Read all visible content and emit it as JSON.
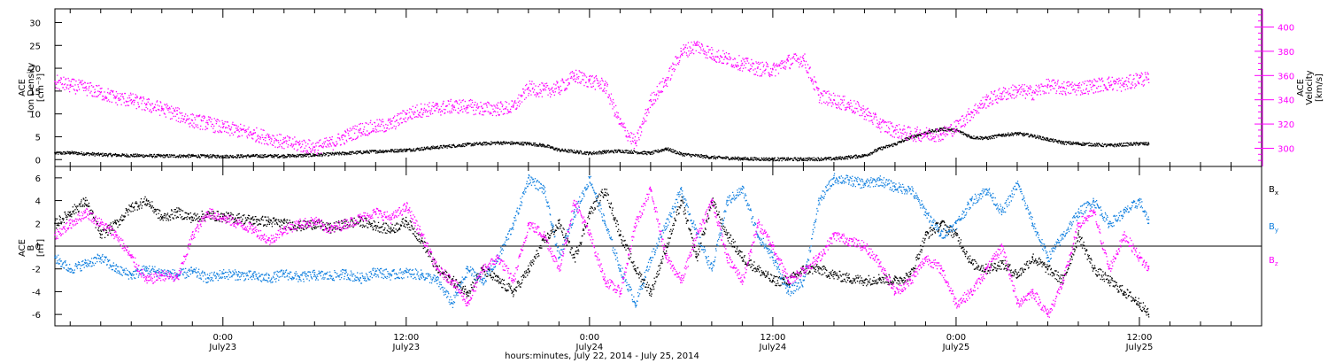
{
  "figure": {
    "xlabel": "hours:minutes, July 22, 2014 - July 25, 2014",
    "x_ticks": [
      {
        "time": "0:00",
        "date": "July23",
        "hour": 24
      },
      {
        "time": "12:00",
        "date": "July23",
        "hour": 36
      },
      {
        "time": "0:00",
        "date": "July24",
        "hour": 48
      },
      {
        "time": "12:00",
        "date": "July24",
        "hour": 60
      },
      {
        "time": "0:00",
        "date": "July25",
        "hour": 72
      },
      {
        "time": "12:00",
        "date": "July25",
        "hour": 84
      }
    ],
    "x_range_hours": [
      13,
      92
    ],
    "colors": {
      "black": "#000000",
      "magenta": "#ff00ff",
      "blue": "#0f7fdf"
    }
  },
  "chart_data": [
    {
      "type": "scatter",
      "panel": "top",
      "left_axis_label": [
        "ACE",
        "Ion Density",
        "[cm⁻³]"
      ],
      "right_axis_label": [
        "ACE",
        "Velocity",
        "[km/s]"
      ],
      "ylim_left": [
        -1.5,
        33
      ],
      "ylim_right": [
        285,
        415
      ],
      "yticks_left": [
        0,
        5,
        10,
        15,
        20,
        25,
        30
      ],
      "yticks_right": [
        300,
        320,
        340,
        360,
        380,
        400
      ],
      "series": [
        {
          "axis": "left",
          "color": "#000000",
          "x": [
            13,
            14,
            16,
            18,
            20,
            22,
            24,
            26,
            28,
            30,
            32,
            34,
            36,
            38,
            40,
            42,
            44,
            45,
            46,
            48,
            49,
            50,
            52,
            53,
            54,
            56,
            58,
            60,
            62,
            64,
            66,
            67,
            68,
            69,
            70,
            71,
            72,
            73,
            74,
            75,
            76,
            77,
            78,
            79,
            80,
            82,
            84,
            84.6
          ],
          "values": [
            1.5,
            1.6,
            1.2,
            1.0,
            0.9,
            0.9,
            0.8,
            0.9,
            0.9,
            1.1,
            1.5,
            1.9,
            2.2,
            2.8,
            3.4,
            3.8,
            3.6,
            3.2,
            2.2,
            1.5,
            1.8,
            2.0,
            1.5,
            2.5,
            1.3,
            0.6,
            0.3,
            0.2,
            0.2,
            0.3,
            1.0,
            2.5,
            3.5,
            5.0,
            6.0,
            6.8,
            6.5,
            5.0,
            4.8,
            5.5,
            5.8,
            5.3,
            4.5,
            3.8,
            3.6,
            3.2,
            3.6,
            3.5
          ]
        },
        {
          "axis": "right",
          "color": "#ff00ff",
          "x": [
            13,
            14,
            15,
            16,
            17,
            18,
            19,
            20,
            21,
            22,
            23,
            24,
            25,
            26,
            27,
            28,
            29,
            30,
            31,
            32,
            33,
            34,
            35,
            36,
            37,
            38,
            39,
            40,
            41,
            42,
            43,
            44,
            45,
            46,
            47,
            48,
            49,
            50,
            51,
            52,
            53,
            54,
            55,
            56,
            57,
            58,
            59,
            60,
            61,
            62,
            63,
            64,
            65,
            66,
            67,
            68,
            69,
            70,
            71,
            72,
            73,
            74,
            75,
            76,
            77,
            78,
            79,
            80,
            81,
            82,
            83,
            84,
            84.6
          ],
          "values": [
            355,
            352,
            350,
            346,
            342,
            340,
            336,
            333,
            328,
            323,
            321,
            317,
            315,
            312,
            309,
            305,
            303,
            301,
            304,
            310,
            316,
            318,
            320,
            328,
            332,
            333,
            335,
            335,
            333,
            333,
            334,
            350,
            348,
            350,
            360,
            356,
            352,
            320,
            304,
            340,
            356,
            380,
            385,
            378,
            374,
            370,
            366,
            365,
            372,
            374,
            344,
            340,
            336,
            330,
            320,
            315,
            312,
            312,
            312,
            318,
            330,
            340,
            345,
            348,
            346,
            352,
            350,
            350,
            352,
            354,
            353,
            358,
            357
          ]
        }
      ]
    },
    {
      "type": "scatter",
      "panel": "bottom",
      "left_axis_label": [
        "ACE",
        "B",
        "[nT]"
      ],
      "ylim": [
        -7,
        7
      ],
      "yticks": [
        -6,
        -4,
        -2,
        0,
        2,
        4,
        6
      ],
      "legend": [
        {
          "label": "B",
          "sub": "x",
          "color": "#000000"
        },
        {
          "label": "B",
          "sub": "y",
          "color": "#0f7fdf"
        },
        {
          "label": "B",
          "sub": "z",
          "color": "#ff00ff"
        }
      ],
      "series": [
        {
          "name": "Bx",
          "color": "#000000",
          "x": [
            13,
            14,
            15,
            16,
            17,
            18,
            19,
            20,
            21,
            22,
            23,
            24,
            25,
            26,
            27,
            28,
            29,
            30,
            31,
            32,
            33,
            34,
            35,
            36,
            37,
            38,
            39,
            40,
            41,
            42,
            43,
            44,
            45,
            46,
            47,
            48,
            49,
            50,
            51,
            52,
            53,
            54,
            55,
            56,
            57,
            58,
            59,
            60,
            61,
            62,
            63,
            64,
            65,
            66,
            67,
            68,
            69,
            70,
            71,
            72,
            73,
            74,
            75,
            76,
            77,
            78,
            79,
            80,
            81,
            82,
            83,
            84,
            84.6
          ],
          "values": [
            2,
            3,
            4,
            1,
            2,
            3.5,
            4,
            2.5,
            3,
            2.5,
            2.8,
            2.6,
            2.5,
            2.3,
            2.2,
            2.0,
            1.8,
            2.0,
            1.6,
            2.0,
            2.2,
            1.8,
            1.5,
            2.2,
            0.5,
            -2,
            -3,
            -4,
            -2,
            -3,
            -4,
            -2,
            0.5,
            2,
            -1,
            3,
            5,
            1,
            -2,
            -4,
            0,
            4,
            -1,
            4,
            1,
            -1,
            -2,
            -3,
            -3,
            -2,
            -2,
            -2.5,
            -2.8,
            -3,
            -2.8,
            -3,
            -2.5,
            1,
            2,
            1,
            -1.5,
            -2,
            -1.5,
            -2.5,
            -1,
            -2,
            -3,
            1,
            -2,
            -3,
            -4,
            -5,
            -6
          ]
        },
        {
          "name": "By",
          "color": "#0f7fdf",
          "x": [
            13,
            14,
            15,
            16,
            17,
            18,
            19,
            20,
            21,
            22,
            23,
            24,
            25,
            26,
            27,
            28,
            29,
            30,
            31,
            32,
            33,
            34,
            35,
            36,
            37,
            38,
            39,
            40,
            41,
            42,
            43,
            44,
            45,
            46,
            47,
            48,
            49,
            50,
            51,
            52,
            53,
            54,
            55,
            56,
            57,
            58,
            59,
            60,
            61,
            62,
            63,
            64,
            65,
            66,
            67,
            68,
            69,
            70,
            71,
            72,
            73,
            74,
            75,
            76,
            77,
            78,
            79,
            80,
            81,
            82,
            83,
            84,
            84.6
          ],
          "values": [
            -1,
            -2,
            -1.5,
            -1,
            -2,
            -2.5,
            -2,
            -2.3,
            -2.5,
            -2.2,
            -2.8,
            -2.4,
            -2.5,
            -2.6,
            -2.8,
            -2.4,
            -2.7,
            -2.5,
            -2.6,
            -2.4,
            -2.8,
            -2.2,
            -2.5,
            -2.3,
            -2.5,
            -3,
            -5,
            -2,
            -3,
            -1,
            2,
            6,
            5,
            -1,
            3,
            6,
            2,
            -2,
            -5,
            -1,
            2,
            5,
            1,
            -2,
            4,
            5,
            1,
            -1,
            -4,
            -3,
            4,
            6,
            5.8,
            5.5,
            5.8,
            5.2,
            5,
            3,
            1,
            2,
            4,
            5,
            3,
            5.5,
            2,
            -1,
            1,
            3,
            4,
            2,
            3,
            4,
            2
          ]
        },
        {
          "name": "Bz",
          "color": "#ff00ff",
          "x": [
            13,
            14,
            15,
            16,
            17,
            18,
            19,
            20,
            21,
            22,
            23,
            24,
            25,
            26,
            27,
            28,
            29,
            30,
            31,
            32,
            33,
            34,
            35,
            36,
            37,
            38,
            39,
            40,
            41,
            42,
            43,
            44,
            45,
            46,
            47,
            48,
            49,
            50,
            51,
            52,
            53,
            54,
            55,
            56,
            57,
            58,
            59,
            60,
            61,
            62,
            63,
            64,
            65,
            66,
            67,
            68,
            69,
            70,
            71,
            72,
            73,
            74,
            75,
            76,
            77,
            78,
            79,
            80,
            81,
            82,
            83,
            84,
            84.6
          ],
          "values": [
            1,
            2,
            3,
            2,
            1,
            -1,
            -3,
            -2.5,
            -2.8,
            1,
            3,
            2.5,
            2,
            1.5,
            0.5,
            1.5,
            2,
            2.2,
            1.5,
            2,
            2.5,
            3,
            2.5,
            3.5,
            1,
            -2,
            -3,
            -5,
            -2,
            -1,
            -3,
            2,
            1,
            -2,
            4,
            1,
            -3,
            -4,
            2,
            5,
            -1,
            -3,
            1,
            4,
            -1,
            -3,
            2,
            0,
            -3,
            -2,
            -1,
            1,
            0.5,
            0,
            -1.5,
            -4,
            -3,
            -1,
            -2,
            -5,
            -4,
            -2,
            0,
            -5,
            -4,
            -6,
            -3,
            2,
            3,
            -2,
            1,
            -1,
            -2
          ]
        }
      ]
    }
  ]
}
